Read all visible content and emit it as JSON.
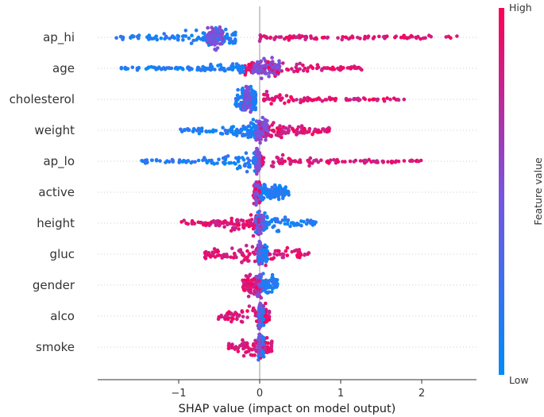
{
  "chart_data": {
    "type": "scatter",
    "subtype": "shap-beeswarm",
    "xlabel": "SHAP value (impact on model output)",
    "xlim": [
      -2.0,
      2.7
    ],
    "xticks": [
      -1,
      0,
      1,
      2
    ],
    "xtick_labels": [
      "−1",
      "0",
      "1",
      "2"
    ],
    "colorbar": {
      "label": "Feature value",
      "high_label": "High",
      "low_label": "Low",
      "high_color": "#ff0052",
      "low_color": "#008bfb"
    },
    "features": [
      {
        "name": "ap_hi",
        "min": -1.78,
        "max": 2.45,
        "low_range": [
          -1.78,
          -0.3
        ],
        "high_range": [
          0.0,
          2.45
        ],
        "dense": [
          -0.65,
          -0.45
        ]
      },
      {
        "name": "age",
        "min": -1.72,
        "max": 1.3,
        "low_range": [
          -1.72,
          -0.2
        ],
        "high_range": [
          -0.2,
          1.3
        ],
        "dense": [
          -0.1,
          0.25
        ]
      },
      {
        "name": "cholesterol",
        "min": -0.3,
        "max": 1.8,
        "low_range": [
          -0.3,
          -0.05
        ],
        "high_range": [
          0.05,
          1.8
        ],
        "dense": [
          -0.2,
          -0.1
        ]
      },
      {
        "name": "weight",
        "min": -0.98,
        "max": 0.9,
        "low_range": [
          -0.98,
          -0.05
        ],
        "high_range": [
          0.0,
          0.9
        ],
        "dense": [
          -0.05,
          0.1
        ]
      },
      {
        "name": "ap_lo",
        "min": -1.5,
        "max": 2.0,
        "low_range": [
          -1.5,
          -0.05
        ],
        "high_range": [
          0.0,
          2.0
        ],
        "dense": [
          -0.05,
          0.0
        ]
      },
      {
        "name": "active",
        "min": -0.18,
        "max": 0.36,
        "low_range": [
          0.0,
          0.36
        ],
        "high_range": [
          -0.08,
          0.0
        ],
        "dense": [
          -0.06,
          -0.02
        ]
      },
      {
        "name": "height",
        "min": -0.98,
        "max": 0.7,
        "low_range": [
          -0.05,
          0.7
        ],
        "high_range": [
          -0.98,
          0.0
        ],
        "dense": [
          -0.05,
          0.05
        ]
      },
      {
        "name": "gluc",
        "min": -0.68,
        "max": 0.62,
        "low_range": [
          -0.02,
          0.1
        ],
        "high_range": [
          -0.68,
          0.62
        ],
        "dense": [
          -0.02,
          0.02
        ]
      },
      {
        "name": "gender",
        "min": -0.22,
        "max": 0.22,
        "low_range": [
          0.0,
          0.22
        ],
        "high_range": [
          -0.22,
          0.0
        ],
        "dense": [
          -0.05,
          0.02
        ]
      },
      {
        "name": "alco",
        "min": -0.55,
        "max": 0.12,
        "low_range": [
          -0.02,
          0.05
        ],
        "high_range": [
          -0.55,
          0.12
        ],
        "dense": [
          -0.01,
          0.01
        ]
      },
      {
        "name": "smoke",
        "min": -0.42,
        "max": 0.15,
        "low_range": [
          -0.02,
          0.05
        ],
        "high_range": [
          -0.42,
          0.15
        ],
        "dense": [
          -0.01,
          0.01
        ]
      }
    ]
  }
}
